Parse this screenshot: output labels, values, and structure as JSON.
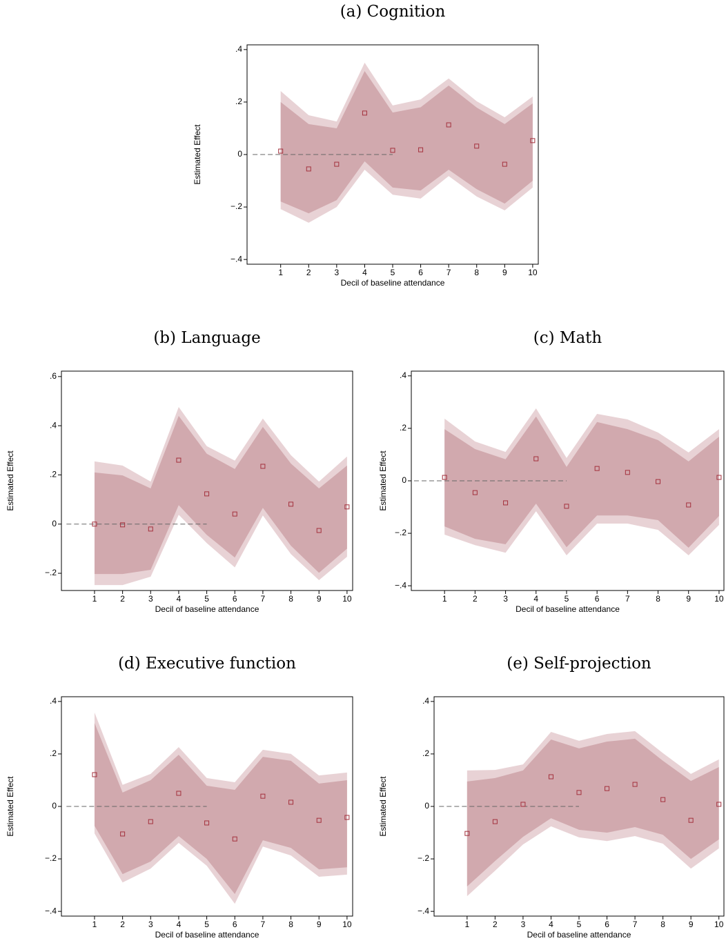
{
  "chart_data": [
    {
      "type": "scatter",
      "title": "(a) Cognition",
      "y_label": "Estimated Effect",
      "x_label": "Decil of baseline attendance",
      "x": [
        1,
        2,
        3,
        4,
        5,
        6,
        7,
        8,
        9,
        10
      ],
      "values": [
        0.013,
        -0.055,
        -0.037,
        0.158,
        0.016,
        0.018,
        0.113,
        0.032,
        -0.037,
        0.053
      ],
      "bands": [
        {
          "color": "#e8d2d5",
          "lower": [
            -0.208,
            -0.26,
            -0.2,
            -0.058,
            -0.153,
            -0.168,
            -0.082,
            -0.16,
            -0.213,
            -0.126
          ],
          "upper": [
            0.242,
            0.15,
            0.126,
            0.35,
            0.187,
            0.21,
            0.29,
            0.203,
            0.142,
            0.221
          ]
        },
        {
          "color": "#d1a9ae",
          "lower": [
            -0.179,
            -0.224,
            -0.174,
            -0.026,
            -0.126,
            -0.137,
            -0.058,
            -0.132,
            -0.187,
            -0.1
          ],
          "upper": [
            0.2,
            0.116,
            0.1,
            0.318,
            0.16,
            0.18,
            0.263,
            0.179,
            0.116,
            0.195
          ]
        }
      ],
      "marker_color": "#a3303c",
      "hline": {
        "y": 0,
        "x": [
          0,
          5
        ]
      },
      "xlim": [
        -0.2,
        10.2
      ],
      "xticks": [
        1,
        2,
        3,
        4,
        5,
        6,
        7,
        8,
        9,
        10
      ],
      "ylim": [
        -0.418,
        0.418
      ],
      "yticks": [
        {
          "value": -0.4,
          "label": "−.4"
        },
        {
          "value": -0.2,
          "label": "−.2"
        },
        0,
        {
          "value": 0.2,
          "label": ".2"
        },
        {
          "value": 0.4,
          "label": ".4"
        }
      ]
    },
    {
      "type": "scatter",
      "title": "(b) Language",
      "y_label": "Estimated Effect",
      "x_label": "Decil of baseline attendance",
      "x": [
        1,
        2,
        3,
        4,
        5,
        6,
        7,
        8,
        9,
        10
      ],
      "values": [
        0,
        -0.003,
        -0.02,
        0.26,
        0.123,
        0.041,
        0.235,
        0.081,
        -0.026,
        0.07
      ],
      "bands": [
        {
          "color": "#e8d2d5",
          "lower": [
            -0.248,
            -0.248,
            -0.214,
            0.038,
            -0.077,
            -0.176,
            0.035,
            -0.122,
            -0.228,
            -0.133
          ],
          "upper": [
            0.255,
            0.238,
            0.173,
            0.476,
            0.317,
            0.258,
            0.429,
            0.28,
            0.173,
            0.275
          ]
        },
        {
          "color": "#d1a9ae",
          "lower": [
            -0.203,
            -0.203,
            -0.186,
            0.077,
            -0.044,
            -0.136,
            0.066,
            -0.088,
            -0.198,
            -0.1
          ],
          "upper": [
            0.21,
            0.198,
            0.145,
            0.44,
            0.286,
            0.224,
            0.395,
            0.246,
            0.145,
            0.238
          ]
        }
      ],
      "marker_color": "#a3303c",
      "hline": {
        "y": 0,
        "x": [
          0,
          5
        ]
      },
      "xlim": [
        -0.18,
        10.2
      ],
      "xticks": [
        1,
        2,
        3,
        4,
        5,
        6,
        7,
        8,
        9,
        10
      ],
      "ylim": [
        -0.27,
        0.622
      ],
      "yticks": [
        {
          "value": -0.2,
          "label": "−.2"
        },
        0,
        {
          "value": 0.2,
          "label": ".2"
        },
        {
          "value": 0.4,
          "label": ".4"
        },
        {
          "value": 0.6,
          "label": ".6"
        }
      ]
    },
    {
      "type": "scatter",
      "title": "(c) Math",
      "y_label": "Estimated Effect",
      "x_label": "Decil of baseline attendance",
      "x": [
        1,
        2,
        3,
        4,
        5,
        6,
        7,
        8,
        9,
        10
      ],
      "values": [
        0.013,
        -0.045,
        -0.084,
        0.084,
        -0.097,
        0.047,
        0.032,
        -0.003,
        -0.092,
        0.013
      ],
      "bands": [
        {
          "color": "#e8d2d5",
          "lower": [
            -0.205,
            -0.245,
            -0.274,
            -0.116,
            -0.284,
            -0.163,
            -0.163,
            -0.187,
            -0.284,
            -0.168
          ],
          "upper": [
            0.237,
            0.15,
            0.11,
            0.276,
            0.087,
            0.255,
            0.234,
            0.184,
            0.108,
            0.197
          ]
        },
        {
          "color": "#d1a9ae",
          "lower": [
            -0.174,
            -0.221,
            -0.242,
            -0.087,
            -0.253,
            -0.132,
            -0.132,
            -0.15,
            -0.255,
            -0.134
          ],
          "upper": [
            0.197,
            0.121,
            0.082,
            0.245,
            0.053,
            0.224,
            0.197,
            0.155,
            0.074,
            0.168
          ]
        }
      ],
      "marker_color": "#a3303c",
      "hline": {
        "y": 0,
        "x": [
          0,
          5
        ]
      },
      "xlim": [
        -0.09,
        10.16
      ],
      "xticks": [
        1,
        2,
        3,
        4,
        5,
        6,
        7,
        8,
        9,
        10
      ],
      "ylim": [
        -0.418,
        0.418
      ],
      "yticks": [
        {
          "value": -0.4,
          "label": "−.4"
        },
        {
          "value": -0.2,
          "label": "−.2"
        },
        0,
        {
          "value": 0.2,
          "label": ".2"
        },
        {
          "value": 0.4,
          "label": ".4"
        }
      ]
    },
    {
      "type": "scatter",
      "title": "(d) Executive function",
      "y_label": "Estimated Effect",
      "x_label": "Decil of baseline attendance",
      "x": [
        1,
        2,
        3,
        4,
        5,
        6,
        7,
        8,
        9,
        10
      ],
      "values": [
        0.121,
        -0.105,
        -0.058,
        0.05,
        -0.063,
        -0.124,
        0.039,
        0.016,
        -0.053,
        -0.042
      ],
      "bands": [
        {
          "color": "#e8d2d5",
          "lower": [
            -0.103,
            -0.29,
            -0.237,
            -0.139,
            -0.226,
            -0.371,
            -0.153,
            -0.187,
            -0.268,
            -0.26
          ],
          "upper": [
            0.358,
            0.082,
            0.124,
            0.226,
            0.108,
            0.092,
            0.216,
            0.2,
            0.118,
            0.129
          ]
        },
        {
          "color": "#d1a9ae",
          "lower": [
            -0.074,
            -0.258,
            -0.21,
            -0.113,
            -0.2,
            -0.334,
            -0.129,
            -0.158,
            -0.24,
            -0.232
          ],
          "upper": [
            0.318,
            0.053,
            0.1,
            0.197,
            0.079,
            0.063,
            0.189,
            0.174,
            0.087,
            0.1
          ]
        }
      ],
      "marker_color": "#a3303c",
      "hline": {
        "y": 0,
        "x": [
          0,
          5
        ]
      },
      "xlim": [
        -0.18,
        10.2
      ],
      "xticks": [
        1,
        2,
        3,
        4,
        5,
        6,
        7,
        8,
        9,
        10
      ],
      "ylim": [
        -0.418,
        0.418
      ],
      "yticks": [
        {
          "value": -0.4,
          "label": "−.4"
        },
        {
          "value": -0.2,
          "label": "−.2"
        },
        0,
        {
          "value": 0.2,
          "label": ".2"
        },
        {
          "value": 0.4,
          "label": ".4"
        }
      ]
    },
    {
      "type": "scatter",
      "title": "(e) Self-projection",
      "y_label": "Estimated Effect",
      "x_label": "Decil of baseline attendance",
      "x": [
        1,
        2,
        3,
        4,
        5,
        6,
        7,
        8,
        9,
        10
      ],
      "values": [
        -0.103,
        -0.058,
        0.008,
        0.113,
        0.053,
        0.068,
        0.084,
        0.026,
        -0.053,
        0.008
      ],
      "bands": [
        {
          "color": "#e8d2d5",
          "lower": [
            -0.342,
            -0.245,
            -0.145,
            -0.076,
            -0.118,
            -0.132,
            -0.113,
            -0.142,
            -0.237,
            -0.16
          ],
          "upper": [
            0.137,
            0.139,
            0.16,
            0.284,
            0.25,
            0.276,
            0.287,
            0.203,
            0.124,
            0.179
          ]
        },
        {
          "color": "#d1a9ae",
          "lower": [
            -0.305,
            -0.208,
            -0.116,
            -0.045,
            -0.089,
            -0.1,
            -0.079,
            -0.108,
            -0.2,
            -0.126
          ],
          "upper": [
            0.095,
            0.108,
            0.137,
            0.255,
            0.221,
            0.247,
            0.258,
            0.174,
            0.097,
            0.15
          ]
        }
      ],
      "marker_color": "#a3303c",
      "hline": {
        "y": 0,
        "x": [
          0,
          5
        ]
      },
      "xlim": [
        -0.18,
        10.18
      ],
      "xticks": [
        1,
        2,
        3,
        4,
        5,
        6,
        7,
        8,
        9,
        10
      ],
      "ylim": [
        -0.418,
        0.418
      ],
      "yticks": [
        {
          "value": -0.4,
          "label": "−.4"
        },
        {
          "value": -0.2,
          "label": "−.2"
        },
        0,
        {
          "value": 0.2,
          "label": ".2"
        },
        {
          "value": 0.4,
          "label": ".4"
        }
      ]
    }
  ]
}
